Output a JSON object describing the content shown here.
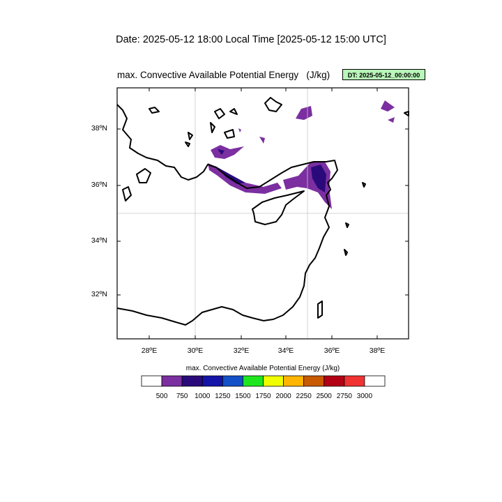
{
  "header": {
    "date_line": "Date: 2025-05-12  18:00 Local Time [2025-05-12  15:00 UTC]",
    "plot_title": "max. Convective Available Potential Energy   (J/kg)",
    "dt_badge": "DT: 2025-05-12_00:00:00"
  },
  "map": {
    "lat_labels": [
      "38ºN",
      "36ºN",
      "34ºN",
      "32ºN"
    ],
    "lon_labels": [
      "28ºE",
      "30ºE",
      "32ºE",
      "34ºE",
      "36ºE",
      "38ºE"
    ],
    "lat_range": [
      30.4,
      39.4
    ],
    "lon_range": [
      26.6,
      39.4
    ],
    "gridlines": "lon 30E, 35E; lat 35N",
    "coastline_color": "#000000"
  },
  "colorbar": {
    "title": "max. Convective Available Potential Energy  (J/kg)",
    "levels": [
      "500",
      "750",
      "1000",
      "1250",
      "1500",
      "1750",
      "2000",
      "2250",
      "2500",
      "2750",
      "3000"
    ],
    "colors": [
      "#ffffff",
      "#7b2fa0",
      "#2a0a7a",
      "#1414a8",
      "#1450c8",
      "#1ee61e",
      "#f0ff00",
      "#ffb400",
      "#c85a00",
      "#b40014",
      "#f03232",
      "#ffffff"
    ]
  },
  "chart_data": {
    "type": "heatmap",
    "title": "max. Convective Available Potential Energy   (J/kg)",
    "units": "J/kg",
    "levels": [
      500,
      750,
      1000,
      1250,
      1500,
      1750,
      2000,
      2250,
      2500,
      2750,
      3000
    ],
    "regions_present": [
      {
        "area": "Gulf of Antalya / southern Turkey coast",
        "max_level": "750-1000"
      },
      {
        "area": "Gulf of Iskenderun / NE Mediterranean",
        "max_level": "1000-1250"
      },
      {
        "area": "Southwest Turkey near 34-35E",
        "max_level": "500-750"
      }
    ]
  }
}
